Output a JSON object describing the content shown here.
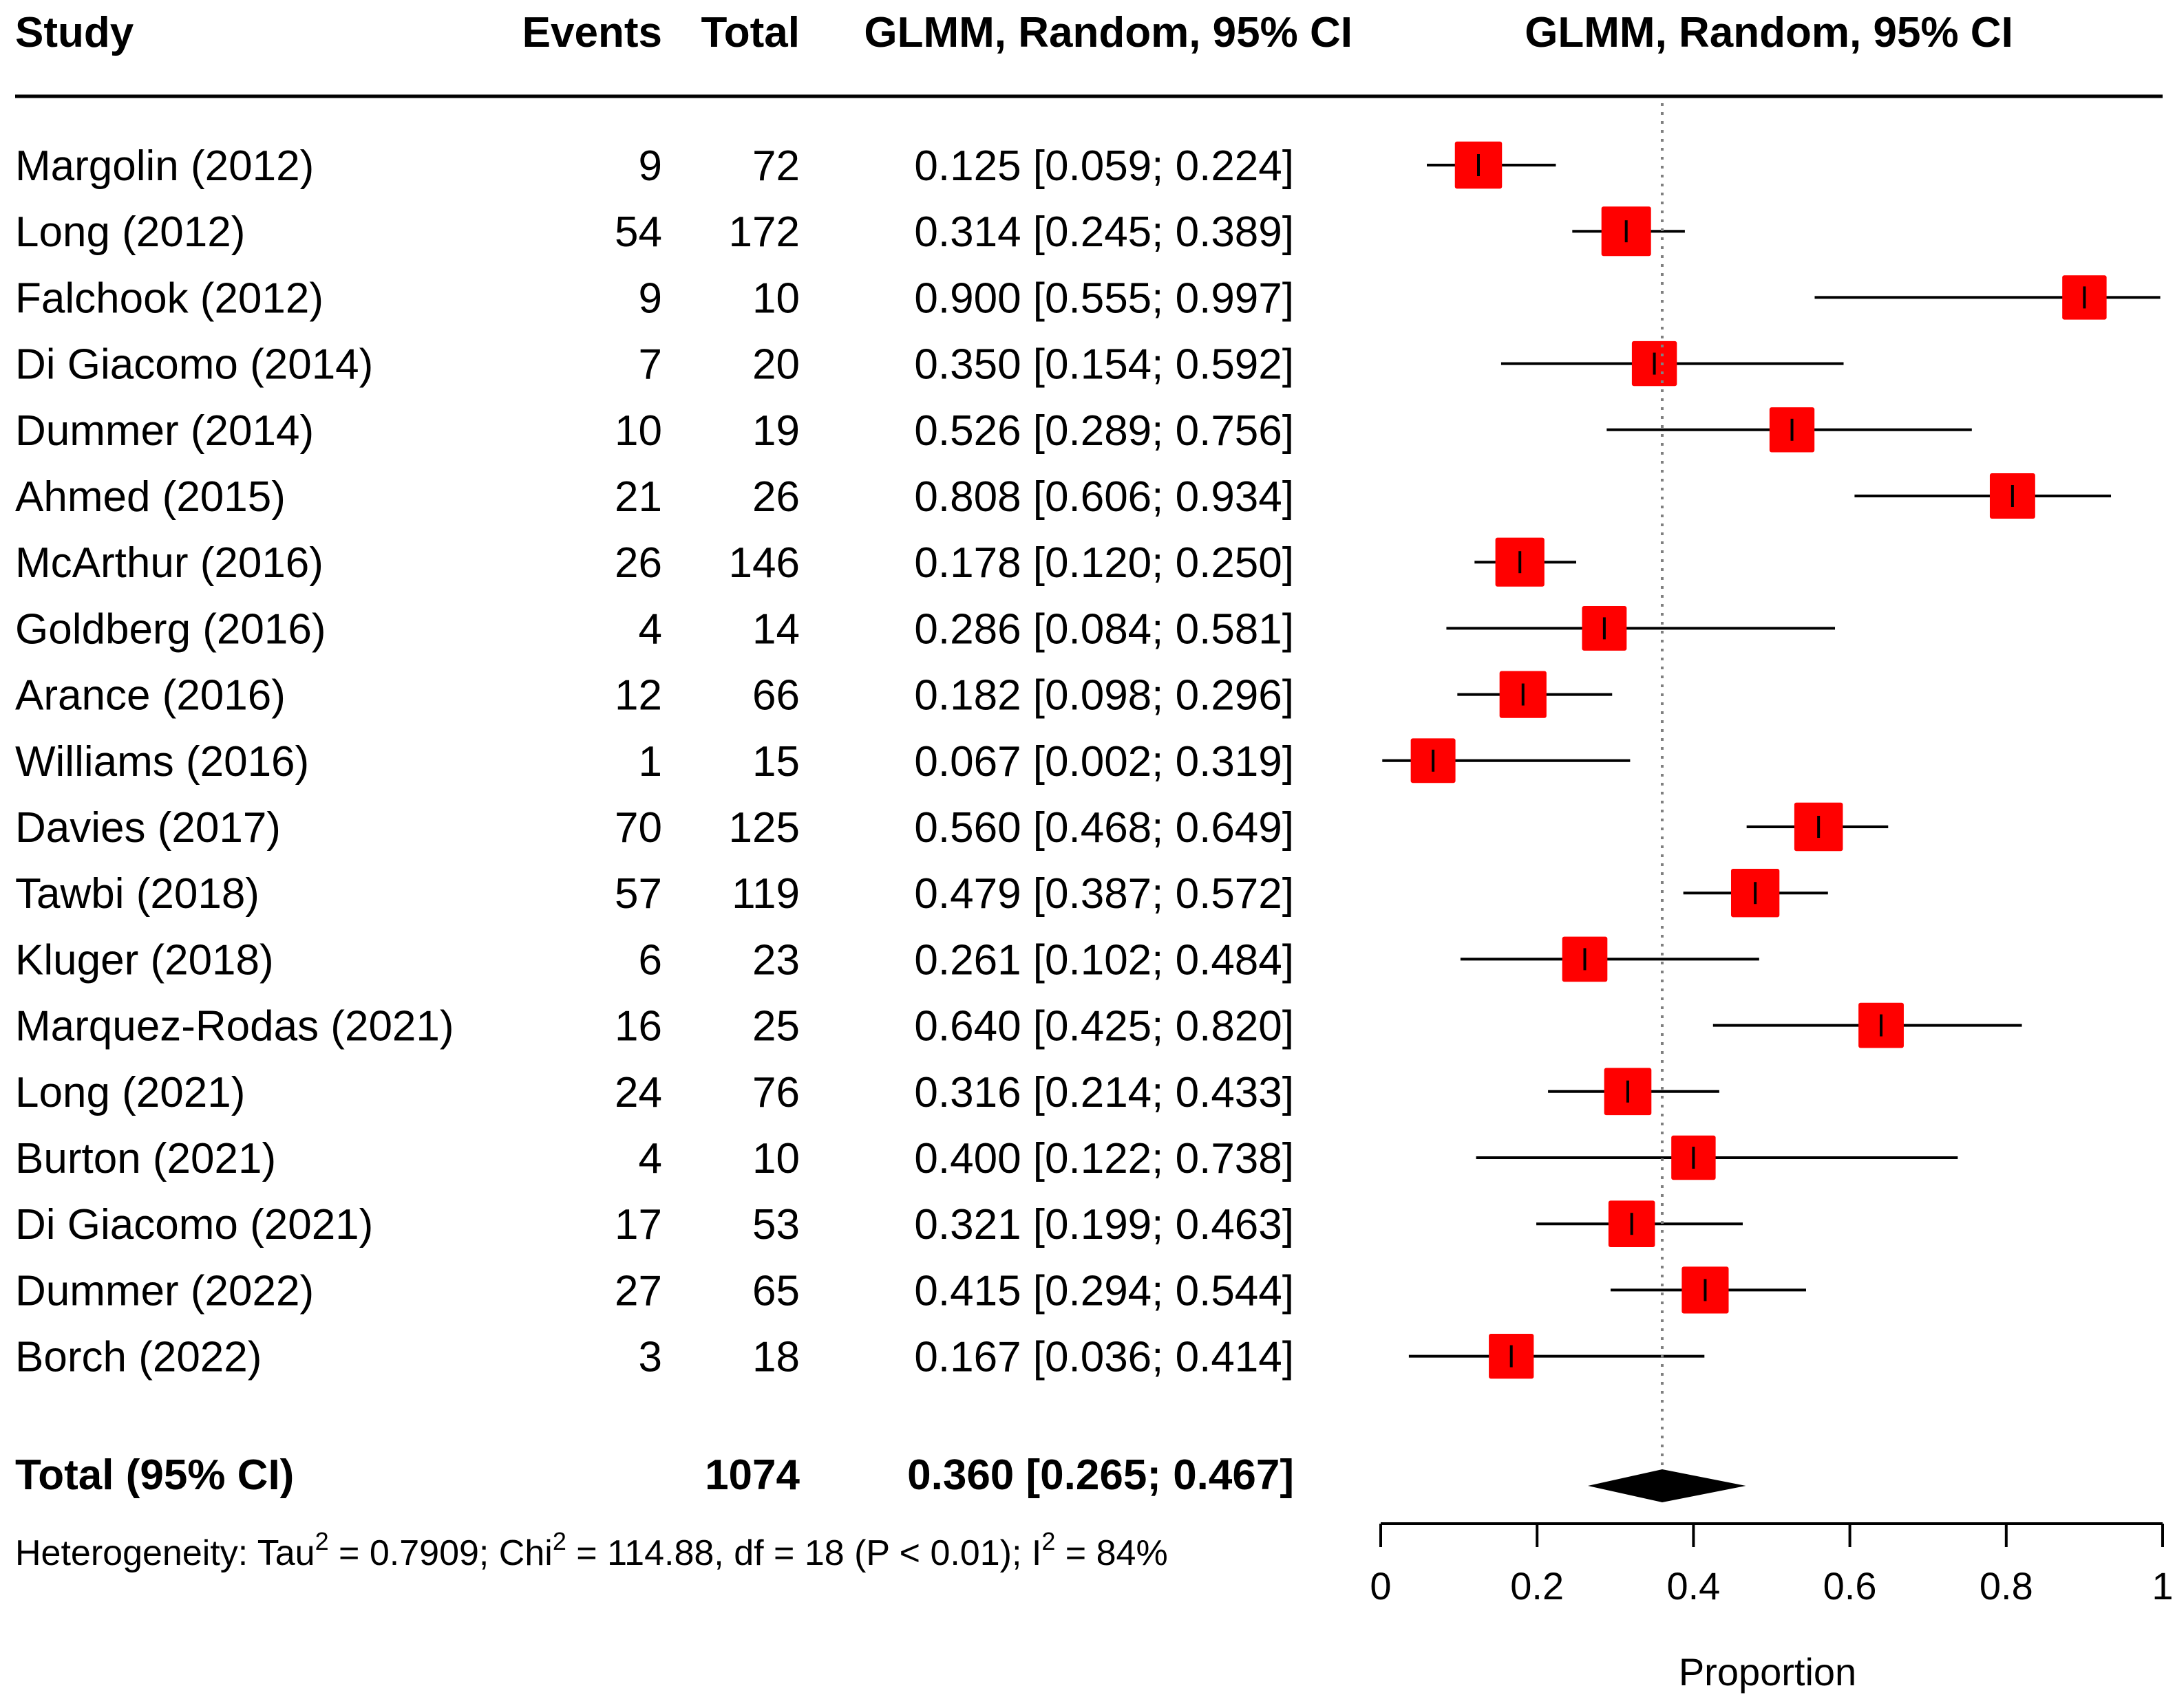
{
  "headers": {
    "study": "Study",
    "events": "Events",
    "total": "Total",
    "ci_column": "GLMM, Random, 95% CI",
    "plot_column": "GLMM, Random, 95% CI"
  },
  "studies": [
    {
      "label": "Margolin (2012)",
      "events": "9",
      "total": "72",
      "ci_text": "0.125 [0.059; 0.224]"
    },
    {
      "label": "Long (2012)",
      "events": "54",
      "total": "172",
      "ci_text": "0.314 [0.245; 0.389]"
    },
    {
      "label": "Falchook (2012)",
      "events": "9",
      "total": "10",
      "ci_text": "0.900 [0.555; 0.997]"
    },
    {
      "label": "Di Giacomo (2014)",
      "events": "7",
      "total": "20",
      "ci_text": "0.350 [0.154; 0.592]"
    },
    {
      "label": "Dummer (2014)",
      "events": "10",
      "total": "19",
      "ci_text": "0.526 [0.289; 0.756]"
    },
    {
      "label": "Ahmed (2015)",
      "events": "21",
      "total": "26",
      "ci_text": "0.808 [0.606; 0.934]"
    },
    {
      "label": "McArthur (2016)",
      "events": "26",
      "total": "146",
      "ci_text": "0.178 [0.120; 0.250]"
    },
    {
      "label": "Goldberg (2016)",
      "events": "4",
      "total": "14",
      "ci_text": "0.286 [0.084; 0.581]"
    },
    {
      "label": "Arance (2016)",
      "events": "12",
      "total": "66",
      "ci_text": "0.182 [0.098; 0.296]"
    },
    {
      "label": "Williams (2016)",
      "events": "1",
      "total": "15",
      "ci_text": "0.067 [0.002; 0.319]"
    },
    {
      "label": "Davies (2017)",
      "events": "70",
      "total": "125",
      "ci_text": "0.560 [0.468; 0.649]"
    },
    {
      "label": "Tawbi (2018)",
      "events": "57",
      "total": "119",
      "ci_text": "0.479 [0.387; 0.572]"
    },
    {
      "label": "Kluger (2018)",
      "events": "6",
      "total": "23",
      "ci_text": "0.261 [0.102; 0.484]"
    },
    {
      "label": "Marquez-Rodas (2021)",
      "events": "16",
      "total": "25",
      "ci_text": "0.640 [0.425; 0.820]"
    },
    {
      "label": "Long (2021)",
      "events": "24",
      "total": "76",
      "ci_text": "0.316 [0.214; 0.433]"
    },
    {
      "label": "Burton (2021)",
      "events": "4",
      "total": "10",
      "ci_text": "0.400 [0.122; 0.738]"
    },
    {
      "label": "Di Giacomo (2021)",
      "events": "17",
      "total": "53",
      "ci_text": "0.321 [0.199; 0.463]"
    },
    {
      "label": "Dummer (2022)",
      "events": "27",
      "total": "65",
      "ci_text": "0.415 [0.294; 0.544]"
    },
    {
      "label": "Borch (2022)",
      "events": "3",
      "total": "18",
      "ci_text": "0.167 [0.036; 0.414]"
    }
  ],
  "pooled": {
    "label": "Total (95% CI)",
    "total": "1074",
    "ci_text": "0.360 [0.265; 0.467]"
  },
  "heterogeneity": {
    "prefix": "Heterogeneity: Tau",
    "tau_sup": "2",
    "tau_value": " = 0.7909; Chi",
    "chi_sup": "2",
    "chi_value": " = 114.88, df = 18 (P < 0.01); I",
    "i_sup": "2",
    "i_value": " = 84%"
  },
  "colors": {
    "marker": "#ff0000",
    "line": "#000000",
    "reference_line": "#808080"
  },
  "chart_data": {
    "type": "forest",
    "xlabel": "Proportion",
    "xlim": [
      0,
      1
    ],
    "xticks": [
      0,
      0.2,
      0.4,
      0.6,
      0.8,
      1
    ],
    "xtick_labels": [
      "0",
      "0.2",
      "0.4",
      "0.6",
      "0.8",
      "1"
    ],
    "reference_line": 0.36,
    "reference_style": "dotted",
    "points": [
      {
        "study": "Margolin (2012)",
        "estimate": 0.125,
        "lower": 0.059,
        "upper": 0.224,
        "total": 72
      },
      {
        "study": "Long (2012)",
        "estimate": 0.314,
        "lower": 0.245,
        "upper": 0.389,
        "total": 172
      },
      {
        "study": "Falchook (2012)",
        "estimate": 0.9,
        "lower": 0.555,
        "upper": 0.997,
        "total": 10
      },
      {
        "study": "Di Giacomo (2014)",
        "estimate": 0.35,
        "lower": 0.154,
        "upper": 0.592,
        "total": 20
      },
      {
        "study": "Dummer (2014)",
        "estimate": 0.526,
        "lower": 0.289,
        "upper": 0.756,
        "total": 19
      },
      {
        "study": "Ahmed (2015)",
        "estimate": 0.808,
        "lower": 0.606,
        "upper": 0.934,
        "total": 26
      },
      {
        "study": "McArthur (2016)",
        "estimate": 0.178,
        "lower": 0.12,
        "upper": 0.25,
        "total": 146
      },
      {
        "study": "Goldberg (2016)",
        "estimate": 0.286,
        "lower": 0.084,
        "upper": 0.581,
        "total": 14
      },
      {
        "study": "Arance (2016)",
        "estimate": 0.182,
        "lower": 0.098,
        "upper": 0.296,
        "total": 66
      },
      {
        "study": "Williams (2016)",
        "estimate": 0.067,
        "lower": 0.002,
        "upper": 0.319,
        "total": 15
      },
      {
        "study": "Davies (2017)",
        "estimate": 0.56,
        "lower": 0.468,
        "upper": 0.649,
        "total": 125
      },
      {
        "study": "Tawbi (2018)",
        "estimate": 0.479,
        "lower": 0.387,
        "upper": 0.572,
        "total": 119
      },
      {
        "study": "Kluger (2018)",
        "estimate": 0.261,
        "lower": 0.102,
        "upper": 0.484,
        "total": 23
      },
      {
        "study": "Marquez-Rodas (2021)",
        "estimate": 0.64,
        "lower": 0.425,
        "upper": 0.82,
        "total": 25
      },
      {
        "study": "Long (2021)",
        "estimate": 0.316,
        "lower": 0.214,
        "upper": 0.433,
        "total": 76
      },
      {
        "study": "Burton (2021)",
        "estimate": 0.4,
        "lower": 0.122,
        "upper": 0.738,
        "total": 10
      },
      {
        "study": "Di Giacomo (2021)",
        "estimate": 0.321,
        "lower": 0.199,
        "upper": 0.463,
        "total": 53
      },
      {
        "study": "Dummer (2022)",
        "estimate": 0.415,
        "lower": 0.294,
        "upper": 0.544,
        "total": 65
      },
      {
        "study": "Borch (2022)",
        "estimate": 0.167,
        "lower": 0.036,
        "upper": 0.414,
        "total": 18
      }
    ],
    "pooled": {
      "estimate": 0.36,
      "lower": 0.265,
      "upper": 0.467
    }
  }
}
